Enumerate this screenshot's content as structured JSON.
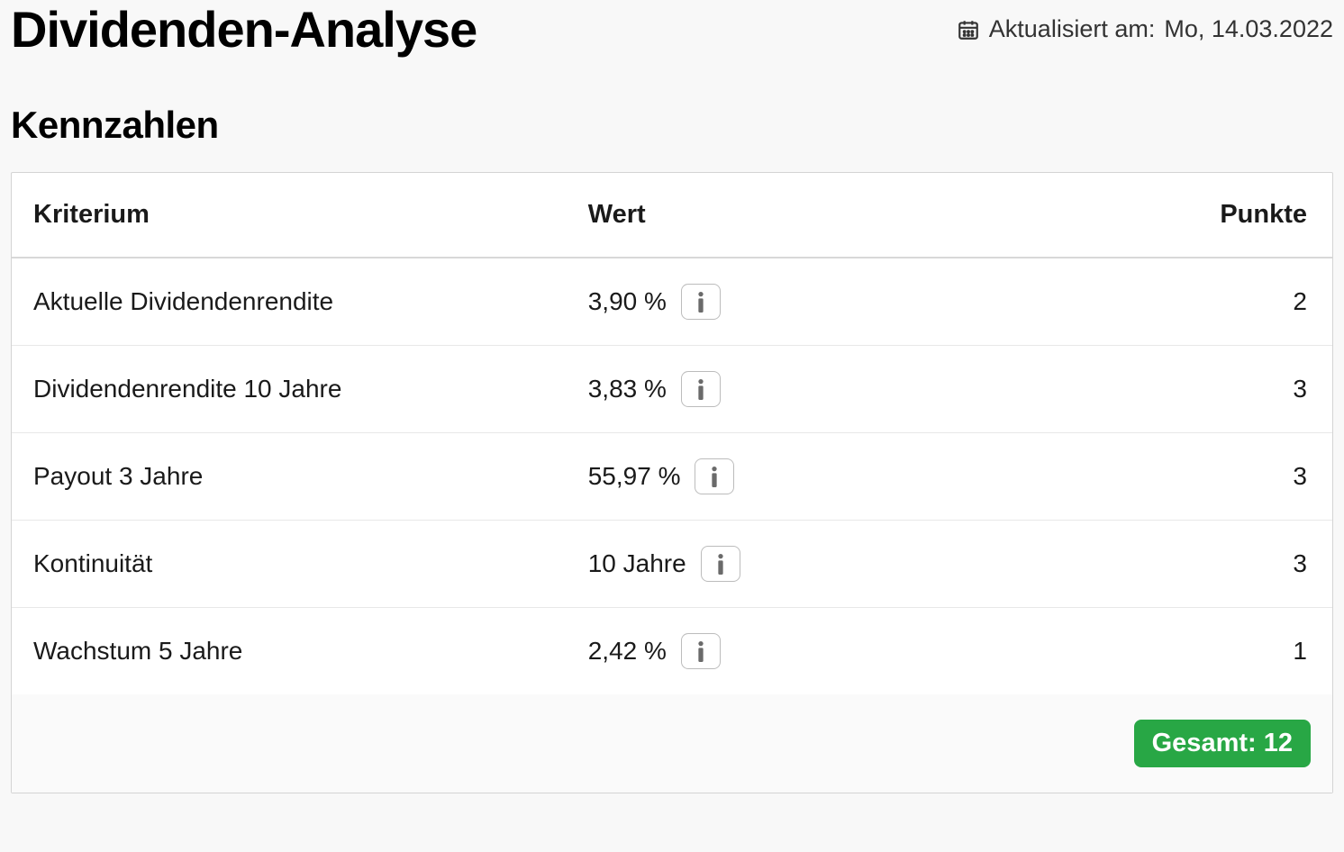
{
  "header": {
    "page_title": "Dividenden-Analyse",
    "updated_label": "Aktualisiert am:",
    "updated_date": "Mo, 14.03.2022"
  },
  "section": {
    "title": "Kennzahlen"
  },
  "table": {
    "columns": {
      "kriterium": "Kriterium",
      "wert": "Wert",
      "punkte": "Punkte"
    },
    "rows": [
      {
        "kriterium": "Aktuelle Dividendenrendite",
        "wert": "3,90 %",
        "punkte": "2"
      },
      {
        "kriterium": "Dividendenrendite 10 Jahre",
        "wert": "3,83 %",
        "punkte": "3"
      },
      {
        "kriterium": "Payout 3 Jahre",
        "wert": "55,97 %",
        "punkte": "3"
      },
      {
        "kriterium": "Kontinuität",
        "wert": "10 Jahre",
        "punkte": "3"
      },
      {
        "kriterium": "Wachstum 5 Jahre",
        "wert": "2,42 %",
        "punkte": "1"
      }
    ],
    "total_label": "Gesamt:",
    "total_value": "12"
  },
  "colors": {
    "background": "#f8f8f8",
    "table_bg": "#ffffff",
    "border": "#d4d4d4",
    "row_border": "#e8e8e8",
    "text": "#1a1a1a",
    "badge_bg": "#28a745",
    "badge_text": "#ffffff",
    "info_border": "#bcbcbc",
    "info_icon": "#6a6a6a"
  }
}
